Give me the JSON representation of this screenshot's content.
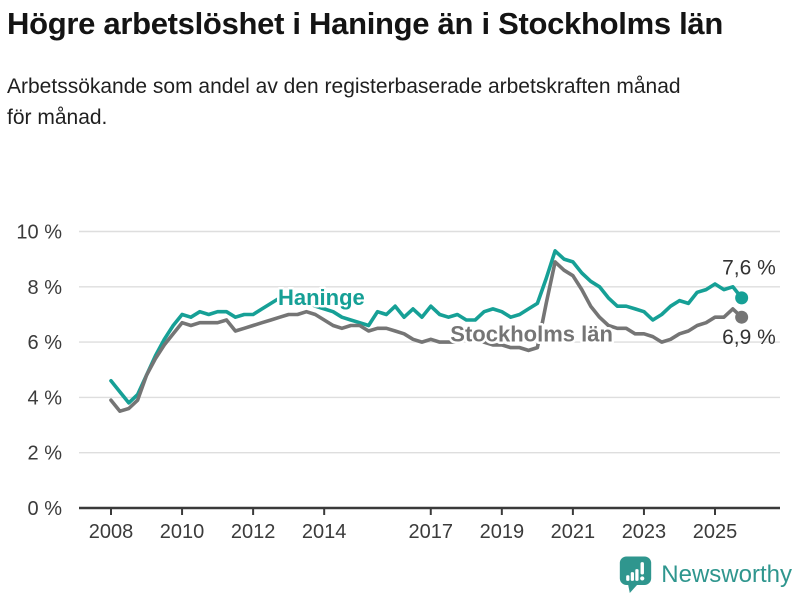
{
  "header": {
    "title": "Högre arbetslöshet i Haninge än i Stockholms län",
    "subtitle": "Arbetssökande som andel av den registerbaserade arbetskraften månad för månad."
  },
  "chart_data": {
    "type": "line",
    "title": "Högre arbetslöshet i Haninge än i Stockholms län",
    "xlabel": "",
    "ylabel": "",
    "ylim": [
      0,
      10.5
    ],
    "grid": "horizontal",
    "legend": "inline-labels",
    "yticks": [
      {
        "v": 0,
        "label": "0 %"
      },
      {
        "v": 2,
        "label": "2 %"
      },
      {
        "v": 4,
        "label": "4 %"
      },
      {
        "v": 6,
        "label": "6 %"
      },
      {
        "v": 8,
        "label": "8 %"
      },
      {
        "v": 10,
        "label": "10 %"
      }
    ],
    "xticks": [
      {
        "v": 2008,
        "label": "2008"
      },
      {
        "v": 2010,
        "label": "2010"
      },
      {
        "v": 2012,
        "label": "2012"
      },
      {
        "v": 2014,
        "label": "2014"
      },
      {
        "v": 2017,
        "label": "2017"
      },
      {
        "v": 2019,
        "label": "2019"
      },
      {
        "v": 2021,
        "label": "2021"
      },
      {
        "v": 2023,
        "label": "2023"
      },
      {
        "v": 2025,
        "label": "2025"
      }
    ],
    "x": [
      2008,
      2008.25,
      2008.5,
      2008.75,
      2009,
      2009.25,
      2009.5,
      2009.75,
      2010,
      2010.25,
      2010.5,
      2010.75,
      2011,
      2011.25,
      2011.5,
      2011.75,
      2012,
      2012.25,
      2012.5,
      2012.75,
      2013,
      2013.25,
      2013.5,
      2013.75,
      2014,
      2014.25,
      2014.5,
      2014.75,
      2015,
      2015.25,
      2015.5,
      2015.75,
      2016,
      2016.25,
      2016.5,
      2016.75,
      2017,
      2017.25,
      2017.5,
      2017.75,
      2018,
      2018.25,
      2018.5,
      2018.75,
      2019,
      2019.25,
      2019.5,
      2019.75,
      2020,
      2020.25,
      2020.5,
      2020.75,
      2021,
      2021.25,
      2021.5,
      2021.75,
      2022,
      2022.25,
      2022.5,
      2022.75,
      2023,
      2023.25,
      2023.5,
      2023.75,
      2024,
      2024.25,
      2024.5,
      2024.75,
      2025,
      2025.25,
      2025.5,
      2025.75
    ],
    "series": [
      {
        "name": "Haninge",
        "color": "#16a096",
        "end_value": 7.6,
        "end_label": {
          "text": "7,6 %",
          "x": 2025.2,
          "y": 8.45
        },
        "name_label": {
          "x": 2012.7,
          "y": 7.35
        },
        "values": [
          4.6,
          4.2,
          3.8,
          4.1,
          4.8,
          5.5,
          6.1,
          6.6,
          7.0,
          6.9,
          7.1,
          7.0,
          7.1,
          7.1,
          6.9,
          7.0,
          7.0,
          7.2,
          7.4,
          7.6,
          7.7,
          7.6,
          7.5,
          7.3,
          7.2,
          7.1,
          6.9,
          6.8,
          6.7,
          6.6,
          7.1,
          7.0,
          7.3,
          6.9,
          7.2,
          6.9,
          7.3,
          7.0,
          6.9,
          7.0,
          6.8,
          6.8,
          7.1,
          7.2,
          7.1,
          6.9,
          7.0,
          7.2,
          7.4,
          8.3,
          9.3,
          9.0,
          8.9,
          8.5,
          8.2,
          8.0,
          7.6,
          7.3,
          7.3,
          7.2,
          7.1,
          6.8,
          7.0,
          7.3,
          7.5,
          7.4,
          7.8,
          7.9,
          8.1,
          7.9,
          8.0,
          7.6
        ]
      },
      {
        "name": "Stockholms län",
        "color": "#757575",
        "end_value": 6.9,
        "end_label": {
          "text": "6,9 %",
          "x": 2025.2,
          "y": 5.93
        },
        "name_label": {
          "x": 2017.55,
          "y": 6.03
        },
        "values": [
          3.9,
          3.5,
          3.6,
          3.9,
          4.8,
          5.4,
          5.9,
          6.3,
          6.7,
          6.6,
          6.7,
          6.7,
          6.7,
          6.8,
          6.4,
          6.5,
          6.6,
          6.7,
          6.8,
          6.9,
          7.0,
          7.0,
          7.1,
          7.0,
          6.8,
          6.6,
          6.5,
          6.6,
          6.6,
          6.4,
          6.5,
          6.5,
          6.4,
          6.3,
          6.1,
          6.0,
          6.1,
          6.0,
          6.0,
          6.0,
          6.1,
          6.1,
          6.0,
          5.9,
          5.9,
          5.8,
          5.8,
          5.7,
          5.8,
          7.4,
          8.9,
          8.6,
          8.4,
          7.9,
          7.3,
          6.9,
          6.6,
          6.5,
          6.5,
          6.3,
          6.3,
          6.2,
          6.0,
          6.1,
          6.3,
          6.4,
          6.6,
          6.7,
          6.9,
          6.9,
          7.2,
          6.9
        ]
      }
    ]
  },
  "footer": {
    "brand": "Newsworthy",
    "icon": "bar-chart-speech-bubble",
    "brand_color": "#2f968e"
  }
}
